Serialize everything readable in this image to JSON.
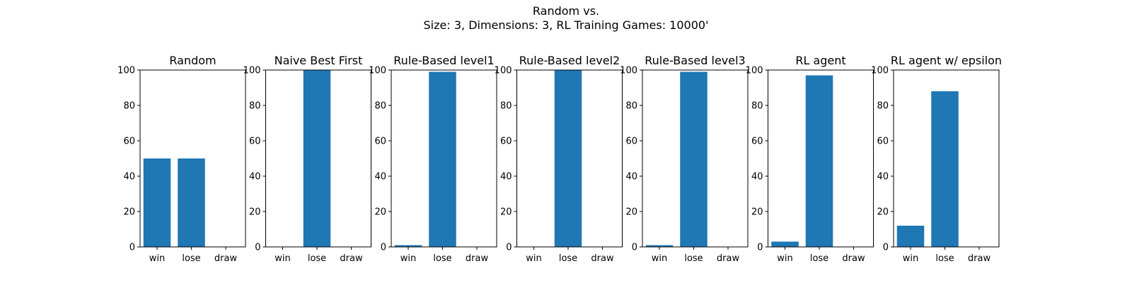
{
  "figure": {
    "title_line1": "Random vs.",
    "title_line2": "Size: 3, Dimensions: 3, RL Training Games: 10000'"
  },
  "chart_data": [
    {
      "type": "bar",
      "title": "Random",
      "categories": [
        "win",
        "lose",
        "draw"
      ],
      "values": [
        50,
        50,
        0
      ],
      "ylim": [
        0,
        100
      ],
      "yticks": [
        0,
        20,
        40,
        60,
        80,
        100
      ],
      "xlabel": "",
      "ylabel": "",
      "color": "#1f77b4"
    },
    {
      "type": "bar",
      "title": "Naive Best First",
      "categories": [
        "win",
        "lose",
        "draw"
      ],
      "values": [
        0,
        100,
        0
      ],
      "ylim": [
        0,
        100
      ],
      "yticks": [
        0,
        20,
        40,
        60,
        80,
        100
      ],
      "xlabel": "",
      "ylabel": "",
      "color": "#1f77b4"
    },
    {
      "type": "bar",
      "title": "Rule-Based level1",
      "categories": [
        "win",
        "lose",
        "draw"
      ],
      "values": [
        1,
        99,
        0
      ],
      "ylim": [
        0,
        100
      ],
      "yticks": [
        0,
        20,
        40,
        60,
        80,
        100
      ],
      "xlabel": "",
      "ylabel": "",
      "color": "#1f77b4"
    },
    {
      "type": "bar",
      "title": "Rule-Based level2",
      "categories": [
        "win",
        "lose",
        "draw"
      ],
      "values": [
        0,
        100,
        0
      ],
      "ylim": [
        0,
        100
      ],
      "yticks": [
        0,
        20,
        40,
        60,
        80,
        100
      ],
      "xlabel": "",
      "ylabel": "",
      "color": "#1f77b4"
    },
    {
      "type": "bar",
      "title": "Rule-Based level3",
      "categories": [
        "win",
        "lose",
        "draw"
      ],
      "values": [
        1,
        99,
        0
      ],
      "ylim": [
        0,
        100
      ],
      "yticks": [
        0,
        20,
        40,
        60,
        80,
        100
      ],
      "xlabel": "",
      "ylabel": "",
      "color": "#1f77b4"
    },
    {
      "type": "bar",
      "title": "RL agent",
      "categories": [
        "win",
        "lose",
        "draw"
      ],
      "values": [
        3,
        97,
        0
      ],
      "ylim": [
        0,
        100
      ],
      "yticks": [
        0,
        20,
        40,
        60,
        80,
        100
      ],
      "xlabel": "",
      "ylabel": "",
      "color": "#1f77b4"
    },
    {
      "type": "bar",
      "title": "RL agent w/ epsilon",
      "categories": [
        "win",
        "lose",
        "draw"
      ],
      "values": [
        12,
        88,
        0
      ],
      "ylim": [
        0,
        100
      ],
      "yticks": [
        0,
        20,
        40,
        60,
        80,
        100
      ],
      "xlabel": "",
      "ylabel": "",
      "color": "#1f77b4"
    }
  ]
}
